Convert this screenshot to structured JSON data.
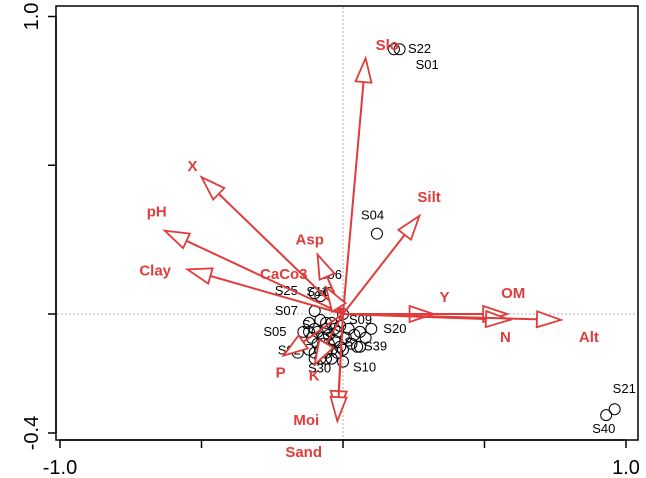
{
  "chart_data": {
    "type": "scatter",
    "subtype": "ordination-biplot",
    "title": "",
    "xlabel": "",
    "ylabel": "",
    "xlim": [
      -1.05,
      1.05
    ],
    "ylim": [
      -0.45,
      1.0
    ],
    "x_ticks": [
      {
        "value": -1.0,
        "label": "-1.0"
      },
      {
        "value": 1.0,
        "label": "1.0"
      }
    ],
    "y_ticks": [
      {
        "value": -0.4,
        "label": "-0.4"
      },
      {
        "value": 1.0,
        "label": "1.0"
      }
    ],
    "reference_lines": {
      "x": 0,
      "y": 0,
      "style": "dotted",
      "color": "#b0b0b0"
    },
    "colors": {
      "vectors": "#e03c3c",
      "sites": "#000000",
      "frame": "#000000"
    },
    "vectors": [
      {
        "name": "Slo",
        "x": 0.08,
        "y": 0.86
      },
      {
        "name": "X",
        "x": -0.5,
        "y": 0.46
      },
      {
        "name": "pH",
        "x": -0.63,
        "y": 0.28
      },
      {
        "name": "Clay",
        "x": -0.55,
        "y": 0.15
      },
      {
        "name": "Asp",
        "x": -0.09,
        "y": 0.2
      },
      {
        "name": "CaCo3",
        "x": -0.06,
        "y": 0.09
      },
      {
        "name": "Silt",
        "x": 0.27,
        "y": 0.33
      },
      {
        "name": "Y",
        "x": 0.32,
        "y": 0.0
      },
      {
        "name": "OM",
        "x": 0.58,
        "y": 0.0
      },
      {
        "name": "N",
        "x": 0.59,
        "y": -0.02
      },
      {
        "name": "Alt",
        "x": 0.77,
        "y": -0.02
      },
      {
        "name": "Moi",
        "x": -0.02,
        "y": -0.34
      },
      {
        "name": "Sand",
        "x": -0.02,
        "y": -0.36
      },
      {
        "name": "P",
        "x": -0.21,
        "y": -0.14
      },
      {
        "name": "K",
        "x": -0.1,
        "y": -0.17
      }
    ],
    "vector_label_offsets": {
      "Slo": [
        10,
        -8
      ],
      "X": [
        -14,
        -6
      ],
      "pH": [
        -18,
        -14
      ],
      "Clay": [
        -48,
        6
      ],
      "Asp": [
        -22,
        -10
      ],
      "CaCo3": [
        -66,
        -8
      ],
      "Silt": [
        -2,
        -14
      ],
      "Y": [
        6,
        -12
      ],
      "OM": [
        -6,
        -16
      ],
      "N": [
        -10,
        22
      ],
      "Alt": [
        18,
        22
      ],
      "Moi": [
        -44,
        10
      ],
      "Sand": [
        -52,
        36
      ],
      "P": [
        -8,
        22
      ],
      "K": [
        -6,
        16
      ]
    },
    "sites": [
      {
        "name": "S22",
        "x": 0.18,
        "y": 0.89
      },
      {
        "name": "S01",
        "x": 0.2,
        "y": 0.89
      },
      {
        "name": "S04",
        "x": 0.12,
        "y": 0.27
      },
      {
        "name": "S06",
        "x": -0.05,
        "y": 0.07
      },
      {
        "name": "S25",
        "x": -0.1,
        "y": 0.07
      },
      {
        "name": "S11",
        "x": -0.08,
        "y": 0.06
      },
      {
        "name": "S07",
        "x": -0.1,
        "y": 0.01
      },
      {
        "name": "S09",
        "x": 0.0,
        "y": 0.0
      },
      {
        "name": "S20",
        "x": 0.1,
        "y": -0.05
      },
      {
        "name": "S05",
        "x": -0.14,
        "y": -0.06
      },
      {
        "name": "S39",
        "x": 0.06,
        "y": -0.11
      },
      {
        "name": "S10",
        "x": 0.0,
        "y": -0.16
      },
      {
        "name": "S21",
        "x": 0.96,
        "y": -0.32
      },
      {
        "name": "S40",
        "x": 0.93,
        "y": -0.34
      },
      {
        "name": "S02",
        "x": -0.16,
        "y": -0.13
      },
      {
        "name": "S30",
        "x": -0.06,
        "y": -0.15
      }
    ],
    "site_label_offsets": {
      "S22": [
        14,
        4
      ],
      "S01": [
        16,
        20
      ],
      "S04": [
        -16,
        -14
      ],
      "S06": [
        -10,
        -14
      ],
      "S25": [
        -40,
        2
      ],
      "S11": [
        -14,
        0
      ],
      "S07": [
        -40,
        4
      ],
      "S09": [
        6,
        10
      ],
      "S20": [
        12,
        4
      ],
      "S05": [
        -40,
        4
      ],
      "S39": [
        4,
        4
      ],
      "S10": [
        10,
        10
      ],
      "S21": [
        -2,
        -16
      ],
      "S40": [
        -14,
        18
      ],
      "S02": [
        -20,
        2
      ],
      "S30": [
        -18,
        14
      ]
    },
    "cluster_points": [
      [
        -0.12,
        -0.03
      ],
      [
        -0.1,
        -0.05
      ],
      [
        -0.08,
        -0.02
      ],
      [
        -0.06,
        -0.05
      ],
      [
        -0.04,
        -0.03
      ],
      [
        -0.02,
        -0.06
      ],
      [
        -0.11,
        -0.08
      ],
      [
        -0.09,
        -0.1
      ],
      [
        -0.07,
        -0.08
      ],
      [
        -0.05,
        -0.1
      ],
      [
        -0.03,
        -0.09
      ],
      [
        -0.01,
        -0.11
      ],
      [
        -0.12,
        -0.12
      ],
      [
        -0.1,
        -0.13
      ],
      [
        -0.08,
        -0.12
      ],
      [
        -0.06,
        -0.13
      ],
      [
        -0.04,
        -0.12
      ],
      [
        -0.02,
        -0.13
      ],
      [
        0.01,
        -0.08
      ],
      [
        0.02,
        -0.05
      ],
      [
        0.04,
        -0.07
      ],
      [
        0.06,
        -0.06
      ],
      [
        0.03,
        -0.1
      ],
      [
        -0.09,
        -0.06
      ],
      [
        -0.07,
        -0.1
      ],
      [
        -0.05,
        -0.07
      ],
      [
        -0.03,
        -0.05
      ],
      [
        0.0,
        -0.12
      ],
      [
        -0.1,
        -0.15
      ],
      [
        -0.04,
        -0.15
      ],
      [
        -0.08,
        -0.15
      ],
      [
        -0.12,
        -0.06
      ],
      [
        0.08,
        -0.08
      ],
      [
        0.05,
        -0.11
      ],
      [
        -0.06,
        -0.03
      ],
      [
        -0.01,
        -0.04
      ]
    ],
    "cluster_labels": [
      {
        "text": "S",
        "x": -0.13,
        "y": -0.05
      },
      {
        "text": "S",
        "x": -0.05,
        "y": -0.09
      },
      {
        "text": "S",
        "x": 0.02,
        "y": -0.11
      }
    ]
  }
}
